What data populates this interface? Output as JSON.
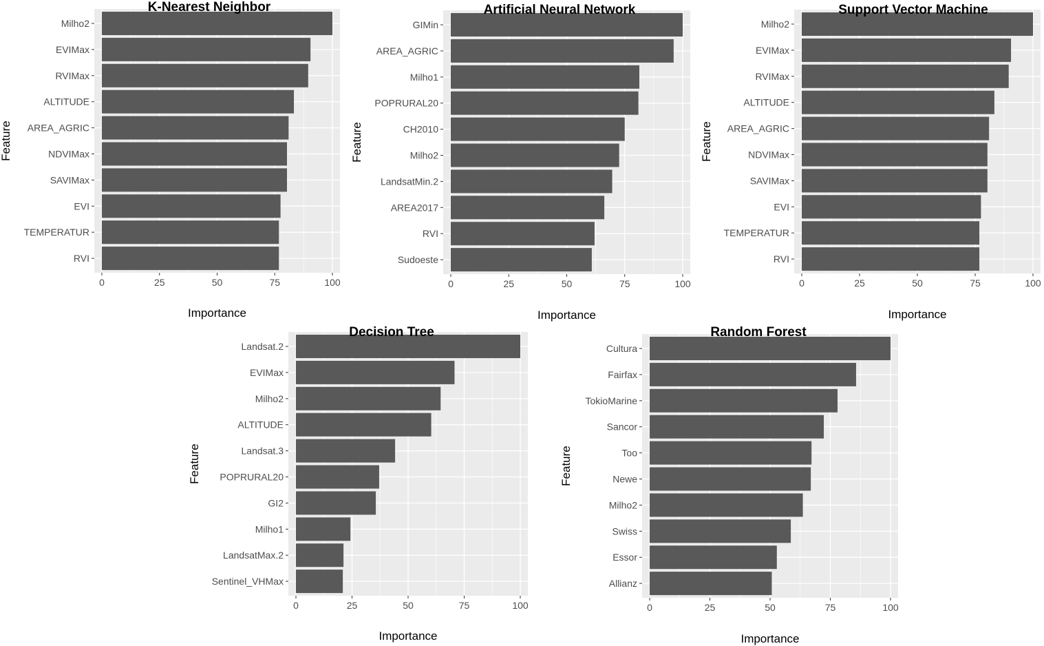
{
  "chart_data": [
    {
      "type": "bar",
      "orientation": "horizontal",
      "title": "K-Nearest Neighbor",
      "xlabel": "Importance",
      "ylabel": "Feature",
      "xlim": [
        0,
        100
      ],
      "xticks": [
        0,
        25,
        50,
        75,
        100
      ],
      "grid": true,
      "categories": [
        "Milho2",
        "EVIMax",
        "RVIMax",
        "ALTITUDE",
        "AREA_AGRIC",
        "NDVIMax",
        "SAVIMax",
        "EVI",
        "TEMPERATUR",
        "RVI"
      ],
      "values": [
        100,
        90.5,
        89.5,
        83.3,
        81,
        80.3,
        80.3,
        77.5,
        76.8,
        76.8
      ],
      "colors": {
        "bar": "#595959",
        "panel": "#ebebeb",
        "grid": "#ffffff"
      }
    },
    {
      "type": "bar",
      "orientation": "horizontal",
      "title": "Artificial Neural Network",
      "xlabel": "Importance",
      "ylabel": "Feature",
      "xlim": [
        0,
        100
      ],
      "xticks": [
        0,
        25,
        50,
        75,
        100
      ],
      "grid": true,
      "categories": [
        "GIMin",
        "AREA_AGRIC",
        "Milho1",
        "POPRURAL20",
        "CH2010",
        "Milho2",
        "LandsatMin.2",
        "AREA2017",
        "RVI",
        "Sudoeste"
      ],
      "values": [
        100,
        96.1,
        81.3,
        80.9,
        75,
        72.6,
        69.6,
        66.2,
        62,
        60.8
      ],
      "colors": {
        "bar": "#595959",
        "panel": "#ebebeb",
        "grid": "#ffffff"
      }
    },
    {
      "type": "bar",
      "orientation": "horizontal",
      "title": "Support Vector Machine",
      "xlabel": "Importance",
      "ylabel": "Feature",
      "xlim": [
        0,
        100
      ],
      "xticks": [
        0,
        25,
        50,
        75,
        100
      ],
      "grid": true,
      "categories": [
        "Milho2",
        "EVIMax",
        "RVIMax",
        "ALTITUDE",
        "AREA_AGRIC",
        "NDVIMax",
        "SAVIMax",
        "EVI",
        "TEMPERATUR",
        "RVI"
      ],
      "values": [
        100,
        90.5,
        89.5,
        83.3,
        81,
        80.3,
        80.3,
        77.5,
        76.8,
        76.8
      ],
      "colors": {
        "bar": "#595959",
        "panel": "#ebebeb",
        "grid": "#ffffff"
      }
    },
    {
      "type": "bar",
      "orientation": "horizontal",
      "title": "Decision Tree",
      "xlabel": "Importance",
      "ylabel": "Feature",
      "xlim": [
        0,
        100
      ],
      "xticks": [
        0,
        25,
        50,
        75,
        100
      ],
      "grid": true,
      "categories": [
        "Landsat.2",
        "EVIMax",
        "Milho2",
        "ALTITUDE",
        "Landsat.3",
        "POPRURAL20",
        "GI2",
        "Milho1",
        "LandsatMax.2",
        "Sentinel_VHMax"
      ],
      "values": [
        100,
        70.7,
        64.5,
        60.3,
        44.2,
        37.1,
        35.6,
        24.3,
        21.2,
        20.9
      ],
      "colors": {
        "bar": "#595959",
        "panel": "#ebebeb",
        "grid": "#ffffff"
      }
    },
    {
      "type": "bar",
      "orientation": "horizontal",
      "title": "Random Forest",
      "xlabel": "Importance",
      "ylabel": "Feature",
      "xlim": [
        0,
        100
      ],
      "xticks": [
        0,
        25,
        50,
        75,
        100
      ],
      "grid": true,
      "categories": [
        "Cultura",
        "Fairfax",
        "TokioMarine",
        "Sancor",
        "Too",
        "Newe",
        "Milho2",
        "Swiss",
        "Essor",
        "Allianz"
      ],
      "values": [
        100,
        85.7,
        78,
        72.3,
        67.2,
        66.9,
        63.6,
        58.6,
        52.8,
        50.7
      ],
      "colors": {
        "bar": "#595959",
        "panel": "#ebebeb",
        "grid": "#ffffff"
      }
    }
  ]
}
